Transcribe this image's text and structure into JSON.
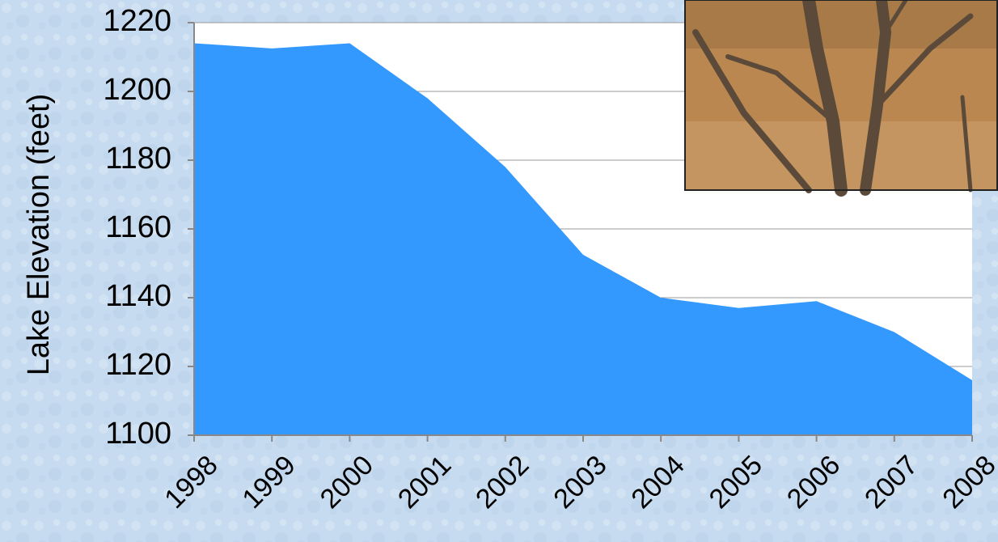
{
  "chart_data": {
    "type": "area",
    "ylabel": "Lake Elevation (feet)",
    "categories": [
      "1998",
      "1999",
      "2000",
      "2001",
      "2002",
      "2003",
      "2004",
      "2005",
      "2006",
      "2007",
      "2008"
    ],
    "values": [
      1214,
      1212.5,
      1214,
      1198,
      1178,
      1152.5,
      1140,
      1137,
      1139,
      1130,
      1116
    ],
    "color": "#3399ff",
    "ylim": [
      1100,
      1220
    ],
    "yticks": [
      1100,
      1120,
      1140,
      1160,
      1180,
      1200,
      1220
    ],
    "grid": true
  }
}
